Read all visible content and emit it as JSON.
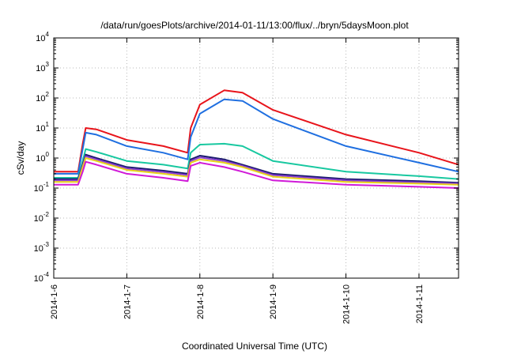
{
  "chart_data": {
    "type": "line",
    "title": "/data/run/goesPlots/archive/2014-01-11/13:00/flux/../bryn/5daysMoon.plot",
    "xlabel": "Coordinated Universal Time (UTC)",
    "ylabel": "cSv/day",
    "yscale": "log",
    "xlim": [
      "2014-01-06 00:00",
      "2014-01-11 13:00"
    ],
    "ylim": [
      0.0001,
      10000
    ],
    "grid": true,
    "x_ticks": [
      "2014-1-6",
      "2014-1-7",
      "2014-1-8",
      "2014-1-9",
      "2014-1-10",
      "2014-1-11"
    ],
    "y_ticks": [
      {
        "base": "10",
        "exp": "-4"
      },
      {
        "base": "10",
        "exp": "-3"
      },
      {
        "base": "10",
        "exp": "-2"
      },
      {
        "base": "10",
        "exp": "-1"
      },
      {
        "base": "10",
        "exp": "0"
      },
      {
        "base": "10",
        "exp": "1"
      },
      {
        "base": "10",
        "exp": "2"
      },
      {
        "base": "10",
        "exp": "3"
      },
      {
        "base": "10",
        "exp": "4"
      }
    ],
    "series": [
      {
        "color": "#e8141b",
        "x": [
          "2014-01-06 00:00",
          "2014-01-06 08:00",
          "2014-01-06 09:30",
          "2014-01-06 10:30",
          "2014-01-06 14:00",
          "2014-01-07 00:00",
          "2014-01-07 12:00",
          "2014-01-07 20:00",
          "2014-01-07 21:00",
          "2014-01-08 00:00",
          "2014-01-08 08:00",
          "2014-01-08 14:00",
          "2014-01-09 00:00",
          "2014-01-10 00:00",
          "2014-01-11 00:00",
          "2014-01-11 13:00"
        ],
        "y": [
          0.35,
          0.35,
          3,
          10,
          9,
          4,
          2.5,
          1.5,
          10,
          60,
          180,
          150,
          40,
          6,
          1.5,
          0.6
        ]
      },
      {
        "color": "#1f6fe0",
        "x": [
          "2014-01-06 00:00",
          "2014-01-06 08:00",
          "2014-01-06 09:30",
          "2014-01-06 10:30",
          "2014-01-06 14:00",
          "2014-01-07 00:00",
          "2014-01-07 12:00",
          "2014-01-07 20:00",
          "2014-01-07 21:00",
          "2014-01-08 00:00",
          "2014-01-08 08:00",
          "2014-01-08 14:00",
          "2014-01-09 00:00",
          "2014-01-10 00:00",
          "2014-01-11 00:00",
          "2014-01-11 13:00"
        ],
        "y": [
          0.3,
          0.3,
          2,
          7,
          6,
          2.5,
          1.5,
          0.9,
          5,
          30,
          90,
          80,
          20,
          2.5,
          0.7,
          0.35
        ]
      },
      {
        "color": "#18c8a0",
        "x": [
          "2014-01-06 00:00",
          "2014-01-06 08:00",
          "2014-01-06 09:30",
          "2014-01-06 10:30",
          "2014-01-06 14:00",
          "2014-01-07 00:00",
          "2014-01-07 12:00",
          "2014-01-07 20:00",
          "2014-01-07 21:00",
          "2014-01-08 00:00",
          "2014-01-08 08:00",
          "2014-01-08 14:00",
          "2014-01-09 00:00",
          "2014-01-10 00:00",
          "2014-01-11 00:00",
          "2014-01-11 13:00"
        ],
        "y": [
          0.22,
          0.22,
          0.8,
          2,
          1.6,
          0.8,
          0.6,
          0.45,
          1.5,
          2.8,
          3,
          2.5,
          0.8,
          0.35,
          0.25,
          0.2
        ]
      },
      {
        "color": "#1a1a6e",
        "x": [
          "2014-01-06 00:00",
          "2014-01-06 08:00",
          "2014-01-06 09:30",
          "2014-01-06 10:30",
          "2014-01-06 14:00",
          "2014-01-07 00:00",
          "2014-01-07 12:00",
          "2014-01-07 20:00",
          "2014-01-07 21:00",
          "2014-01-08 00:00",
          "2014-01-08 08:00",
          "2014-01-08 14:00",
          "2014-01-09 00:00",
          "2014-01-10 00:00",
          "2014-01-11 00:00",
          "2014-01-11 13:00"
        ],
        "y": [
          0.2,
          0.2,
          0.6,
          1.3,
          1.0,
          0.5,
          0.38,
          0.3,
          0.9,
          1.2,
          0.9,
          0.6,
          0.3,
          0.2,
          0.17,
          0.15
        ]
      },
      {
        "color": "#8a3fd0",
        "x": [
          "2014-01-06 00:00",
          "2014-01-06 08:00",
          "2014-01-06 09:30",
          "2014-01-06 10:30",
          "2014-01-06 14:00",
          "2014-01-07 00:00",
          "2014-01-07 12:00",
          "2014-01-07 20:00",
          "2014-01-07 21:00",
          "2014-01-08 00:00",
          "2014-01-08 08:00",
          "2014-01-08 14:00",
          "2014-01-09 00:00",
          "2014-01-10 00:00",
          "2014-01-11 00:00",
          "2014-01-11 13:00"
        ],
        "y": [
          0.18,
          0.18,
          0.55,
          1.15,
          0.9,
          0.45,
          0.34,
          0.27,
          0.8,
          1.05,
          0.8,
          0.55,
          0.27,
          0.18,
          0.155,
          0.14
        ]
      },
      {
        "color": "#e8d21a",
        "x": [
          "2014-01-06 00:00",
          "2014-01-06 08:00",
          "2014-01-06 09:30",
          "2014-01-06 10:30",
          "2014-01-06 14:00",
          "2014-01-07 00:00",
          "2014-01-07 12:00",
          "2014-01-07 20:00",
          "2014-01-07 21:00",
          "2014-01-08 00:00",
          "2014-01-08 08:00",
          "2014-01-08 14:00",
          "2014-01-09 00:00",
          "2014-01-10 00:00",
          "2014-01-11 00:00",
          "2014-01-11 13:00"
        ],
        "y": [
          0.16,
          0.16,
          0.5,
          1.0,
          0.8,
          0.4,
          0.3,
          0.24,
          0.7,
          0.9,
          0.7,
          0.5,
          0.24,
          0.16,
          0.14,
          0.13
        ]
      },
      {
        "color": "#d01ad8",
        "x": [
          "2014-01-06 00:00",
          "2014-01-06 08:00",
          "2014-01-06 09:30",
          "2014-01-06 10:30",
          "2014-01-06 14:00",
          "2014-01-07 00:00",
          "2014-01-07 12:00",
          "2014-01-07 20:00",
          "2014-01-07 21:00",
          "2014-01-08 00:00",
          "2014-01-08 08:00",
          "2014-01-08 14:00",
          "2014-01-09 00:00",
          "2014-01-10 00:00",
          "2014-01-11 00:00",
          "2014-01-11 13:00"
        ],
        "y": [
          0.13,
          0.13,
          0.35,
          0.75,
          0.6,
          0.3,
          0.22,
          0.17,
          0.55,
          0.7,
          0.5,
          0.35,
          0.18,
          0.13,
          0.11,
          0.1
        ]
      }
    ]
  }
}
